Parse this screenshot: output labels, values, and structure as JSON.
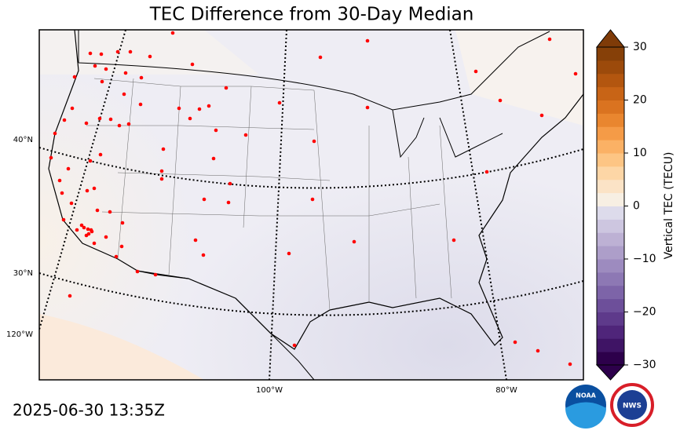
{
  "title": "TEC Difference from 30-Day Median",
  "timestamp": "2025-06-30 13:35Z",
  "map": {
    "lat_labels": [
      "40°N",
      "30°N",
      "120°W"
    ],
    "lon_labels": [
      "100°W",
      "80°W"
    ]
  },
  "colorbar": {
    "label": "Vertical TEC (TECU)",
    "lim": [
      -30,
      30
    ],
    "ticks": [
      30,
      20,
      10,
      0,
      {
        "value": -10,
        "label": "−10"
      },
      {
        "value": -20,
        "label": "−20"
      },
      {
        "value": -30,
        "label": "−30"
      }
    ],
    "colors": [
      "#2d004b",
      "#3f1465",
      "#4f257a",
      "#5e3a8b",
      "#6d4f9a",
      "#7d64a8",
      "#8d78b4",
      "#9d8bbf",
      "#ad9ec9",
      "#bdb1d4",
      "#cdc6e0",
      "#dddbeb",
      "#f7efe3",
      "#fbe3c6",
      "#fdd6a6",
      "#fdc584",
      "#fbb165",
      "#f59b47",
      "#e9862f",
      "#da7320",
      "#c86416",
      "#b3560f",
      "#9c4a0b",
      "#864008"
    ],
    "under_color": "#2d004b",
    "over_color": "#7f3b08"
  },
  "logos": [
    "NOAA",
    "NWS"
  ]
}
